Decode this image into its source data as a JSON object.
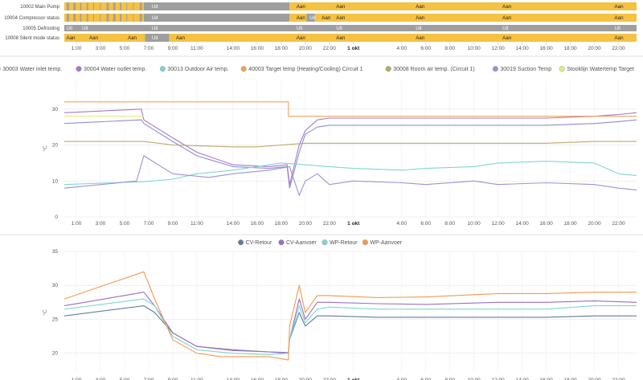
{
  "timeline": {
    "rows": [
      {
        "label": "10002 Main Pump",
        "segments": [
          {
            "from": 0,
            "to": 6.6,
            "state": "Aan",
            "striped": true
          },
          {
            "from": 6.6,
            "to": 18.7,
            "state": "Uit"
          },
          {
            "from": 18.7,
            "to": 48,
            "state": "Aan"
          }
        ]
      },
      {
        "label": "10004 Compressor status",
        "segments": [
          {
            "from": 0,
            "to": 6.6,
            "state": "Aan",
            "striped": true
          },
          {
            "from": 6.6,
            "to": 18.7,
            "state": "Uit"
          },
          {
            "from": 18.7,
            "to": 20.1,
            "state": "Aan"
          },
          {
            "from": 20.1,
            "to": 20.8,
            "state": "Uit"
          },
          {
            "from": 20.8,
            "to": 48,
            "state": "Aan"
          }
        ]
      },
      {
        "label": "10005 Defrosting",
        "segments": [
          {
            "from": 0,
            "to": 0.9,
            "state": "Uit"
          },
          {
            "from": 0.9,
            "to": 48,
            "state": "Uit"
          }
        ]
      },
      {
        "label": "10008 Silent mode status",
        "segments": [
          {
            "from": 0,
            "to": 6.7,
            "state": "Aan"
          },
          {
            "from": 6.7,
            "to": 8.7,
            "state": "Uit"
          },
          {
            "from": 8.7,
            "to": 48,
            "state": "Aan"
          }
        ]
      }
    ],
    "label_positions": {
      "r0": [
        {
          "t": 7.2,
          "s": "Uit"
        },
        {
          "t": 19.2,
          "s": "Aan"
        },
        {
          "t": 22.5,
          "s": "Aan"
        },
        {
          "t": 29.1,
          "s": "Aan"
        },
        {
          "t": 36.3,
          "s": "Aan"
        },
        {
          "t": 45.6,
          "s": "Aan"
        }
      ],
      "r1": [
        {
          "t": 7.2,
          "s": "Uit"
        },
        {
          "t": 19.2,
          "s": "Aan"
        },
        {
          "t": 20.3,
          "s": "Uit"
        },
        {
          "t": 21.3,
          "s": "Aan"
        },
        {
          "t": 22.5,
          "s": "Aan"
        },
        {
          "t": 29.1,
          "s": "Aan"
        },
        {
          "t": 36.3,
          "s": "Aan"
        },
        {
          "t": 45.6,
          "s": "Aan"
        }
      ],
      "r2": [
        {
          "t": 0.1,
          "s": "Uit"
        },
        {
          "t": 1.4,
          "s": "Uit"
        },
        {
          "t": 7.2,
          "s": "Uit"
        },
        {
          "t": 19.2,
          "s": "Uit"
        },
        {
          "t": 22.5,
          "s": "Uit"
        },
        {
          "t": 29.1,
          "s": "Uit"
        },
        {
          "t": 36.3,
          "s": "Uit"
        },
        {
          "t": 45.6,
          "s": "Uit"
        }
      ],
      "r3": [
        {
          "t": 0.1,
          "s": "Aan"
        },
        {
          "t": 2.0,
          "s": "Aan"
        },
        {
          "t": 5.2,
          "s": "Aan"
        },
        {
          "t": 7.2,
          "s": "Uit"
        },
        {
          "t": 9.2,
          "s": "Aan"
        },
        {
          "t": 19.2,
          "s": "Aan"
        },
        {
          "t": 22.5,
          "s": "Aan"
        },
        {
          "t": 29.1,
          "s": "Aan"
        },
        {
          "t": 36.3,
          "s": "Aan"
        },
        {
          "t": 45.6,
          "s": "Aan"
        }
      ]
    }
  },
  "x_ticks": [
    {
      "label": "1:00",
      "t": 1
    },
    {
      "label": "3:00",
      "t": 3
    },
    {
      "label": "5:00",
      "t": 5
    },
    {
      "label": "7:00",
      "t": 7
    },
    {
      "label": "9:00",
      "t": 9
    },
    {
      "label": "11:00",
      "t": 11
    },
    {
      "label": "14:00",
      "t": 14
    },
    {
      "label": "16:00",
      "t": 16
    },
    {
      "label": "18:00",
      "t": 18
    },
    {
      "label": "20:00",
      "t": 20
    },
    {
      "label": "22:00",
      "t": 22
    },
    {
      "label": "1 okt",
      "t": 24,
      "bold": true
    },
    {
      "label": "4:00",
      "t": 28
    },
    {
      "label": "6:00",
      "t": 30
    },
    {
      "label": "8:00",
      "t": 32
    },
    {
      "label": "10:00",
      "t": 34
    },
    {
      "label": "12:00",
      "t": 36
    },
    {
      "label": "14:00",
      "t": 38
    },
    {
      "label": "16:00",
      "t": 40
    },
    {
      "label": "18:00",
      "t": 42
    },
    {
      "label": "20:00",
      "t": 44
    },
    {
      "label": "22:00",
      "t": 46
    }
  ],
  "chart_data": [
    {
      "type": "line",
      "title": "",
      "ylabel": "°C",
      "ylim": [
        0,
        38
      ],
      "y_ticks": [
        0,
        10,
        20,
        30
      ],
      "grid": true,
      "legend_position": "top",
      "series": [
        {
          "name": "30003 Water inlet temp.",
          "color": "#8c8fd1",
          "x": [
            0,
            6.4,
            6.6,
            9,
            11,
            14,
            17,
            18.5,
            18.7,
            19.5,
            20,
            21,
            22,
            26,
            30,
            36,
            40,
            44,
            46,
            48
          ],
          "y": [
            26,
            27,
            26,
            21,
            17,
            14,
            13.5,
            14,
            8,
            18,
            23,
            25,
            25.5,
            25.5,
            25.5,
            25.5,
            25.5,
            26,
            26.5,
            27
          ]
        },
        {
          "name": "30004 Water outlet temp.",
          "color": "#a978c9",
          "x": [
            0,
            6.4,
            6.6,
            9,
            11,
            14,
            17,
            18.5,
            18.7,
            19.5,
            20,
            21,
            22,
            26,
            30,
            36,
            40,
            44,
            46,
            48
          ],
          "y": [
            29,
            30,
            27,
            22,
            18,
            14.5,
            14,
            14.5,
            9,
            20,
            24,
            27,
            27.5,
            27.5,
            27.5,
            27.5,
            27.5,
            28,
            28.5,
            29
          ]
        },
        {
          "name": "30013 Outdoor Air temp.",
          "color": "#7fd6d4",
          "x": [
            0,
            4,
            6.6,
            9,
            11,
            14,
            16,
            18,
            20,
            22,
            24,
            28,
            30,
            34,
            36,
            40,
            44,
            46,
            48
          ],
          "y": [
            9,
            9.5,
            9.8,
            10.5,
            12,
            13,
            14,
            15,
            14.5,
            14,
            13.5,
            13,
            13.5,
            14,
            15,
            15.5,
            15,
            12,
            11.5
          ]
        },
        {
          "name": "40003 Target temp (Heating/Cooling) Circuit 1",
          "color": "#f2a15a",
          "x": [
            0,
            18.6,
            18.6,
            48
          ],
          "y": [
            32,
            32,
            28,
            28
          ]
        },
        {
          "name": "30008 Room air temp. (Circuit 1)",
          "color": "#b8a86a",
          "x": [
            0,
            6.6,
            9,
            14,
            16,
            18,
            20,
            24,
            30,
            36,
            40,
            44,
            48
          ],
          "y": [
            21,
            21,
            20,
            19.5,
            19.5,
            20,
            20.5,
            20.5,
            20.5,
            20.5,
            20.5,
            21,
            21
          ]
        },
        {
          "name": "30019 Suction Temp",
          "color": "#9a94d6",
          "x": [
            0,
            6,
            6.6,
            9,
            12,
            14,
            17,
            18.7,
            19.5,
            20,
            21,
            22,
            24,
            28,
            30,
            34,
            36,
            40,
            44,
            46,
            48
          ],
          "y": [
            8,
            10,
            17,
            12,
            11,
            12,
            13,
            14,
            6,
            10,
            12,
            9,
            10,
            9.5,
            9,
            10,
            9,
            9.5,
            9,
            8,
            7.5
          ]
        },
        {
          "name": "Stooklijn Watertemp Target",
          "color": "#e3ec7a",
          "x": [
            0,
            6.6,
            6.6,
            48
          ],
          "y": [
            28,
            28,
            null,
            null
          ]
        }
      ]
    },
    {
      "type": "line",
      "title": "",
      "ylabel": "°C",
      "ylim": [
        17,
        35
      ],
      "y_ticks": [
        20,
        25,
        30,
        35
      ],
      "grid": true,
      "legend_position": "top",
      "series": [
        {
          "name": "CV-Retour",
          "color": "#5f7ea0",
          "x": [
            0,
            6.6,
            7.5,
            9,
            11,
            14,
            17,
            18.6,
            18.7,
            19.5,
            20,
            21,
            22,
            26,
            30,
            36,
            40,
            44,
            48
          ],
          "y": [
            25.5,
            27,
            26,
            23,
            21,
            20.5,
            20.2,
            20,
            22,
            26,
            24,
            25.5,
            25.5,
            25.3,
            25.3,
            25.3,
            25.3,
            25.5,
            25.5
          ]
        },
        {
          "name": "CV-Aanvoer",
          "color": "#9a6fc4",
          "x": [
            0,
            6.6,
            7.5,
            9,
            11,
            14,
            17,
            18.6,
            18.7,
            19.5,
            20,
            21,
            22,
            26,
            30,
            36,
            40,
            44,
            48
          ],
          "y": [
            27,
            29,
            27,
            23,
            21,
            20.4,
            20.2,
            20.1,
            22,
            28,
            25,
            27.5,
            27.5,
            27.3,
            27.2,
            27.5,
            27.5,
            27.7,
            27.5
          ]
        },
        {
          "name": "WP-Retour",
          "color": "#7fd6d4",
          "x": [
            0,
            6.6,
            7.5,
            9,
            11,
            14,
            17,
            18.6,
            18.7,
            19.5,
            20,
            21,
            22,
            26,
            30,
            36,
            40,
            44,
            48
          ],
          "y": [
            26.5,
            28,
            27,
            22.5,
            20.5,
            20,
            19.8,
            20,
            22,
            27,
            24.5,
            26.5,
            26.8,
            26.5,
            26.5,
            26.5,
            26.5,
            27,
            27
          ]
        },
        {
          "name": "WP-Aanvoer",
          "color": "#f29a4e",
          "x": [
            0,
            6.6,
            7.5,
            9,
            11,
            13,
            17,
            18.6,
            18.7,
            19.5,
            20,
            21,
            22,
            26,
            30,
            36,
            40,
            44,
            48
          ],
          "y": [
            28,
            32,
            28,
            22,
            20,
            19.5,
            19.5,
            19,
            24,
            30,
            26,
            28.5,
            28.5,
            28.2,
            28.3,
            28.8,
            28.8,
            29,
            29
          ]
        }
      ]
    }
  ]
}
